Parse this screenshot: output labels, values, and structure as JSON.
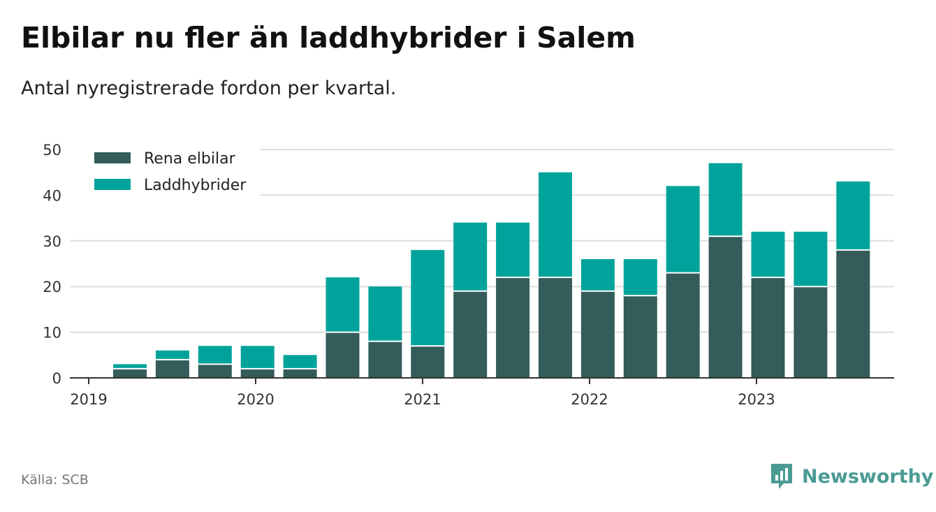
{
  "title": "Elbilar nu fler än laddhybrider i Salem",
  "subtitle": "Antal nyregistrerade fordon per kvartal.",
  "source": "Källa: SCB",
  "brand": "Newsworthy",
  "colors": {
    "elbilar": "#335c5a",
    "laddhybrider": "#00a39b",
    "grid": "#dddddd",
    "axis": "#333333",
    "brand": "#4a9b94"
  },
  "chart_data": {
    "type": "bar",
    "stacked": true,
    "categories": [
      "2019 Q2",
      "2019 Q3",
      "2019 Q4",
      "2020 Q1",
      "2020 Q2",
      "2020 Q3",
      "2020 Q4",
      "2021 Q1",
      "2021 Q2",
      "2021 Q3",
      "2021 Q4",
      "2022 Q1",
      "2022 Q2",
      "2022 Q3",
      "2022 Q4",
      "2023 Q1",
      "2023 Q2",
      "2023 Q3"
    ],
    "series": [
      {
        "name": "Rena elbilar",
        "values": [
          2,
          4,
          3,
          2,
          2,
          10,
          8,
          7,
          19,
          22,
          22,
          19,
          18,
          23,
          31,
          22,
          20,
          28
        ]
      },
      {
        "name": "Laddhybrider",
        "values": [
          1,
          2,
          4,
          5,
          3,
          12,
          12,
          21,
          15,
          12,
          23,
          7,
          8,
          19,
          16,
          10,
          12,
          15
        ]
      }
    ],
    "y_ticks": [
      "0",
      "10",
      "20",
      "30",
      "40",
      "50"
    ],
    "x_ticks": [
      "2019",
      "2020",
      "2021",
      "2022",
      "2023"
    ],
    "ylim": [
      0,
      50
    ],
    "legend": "top-left"
  }
}
